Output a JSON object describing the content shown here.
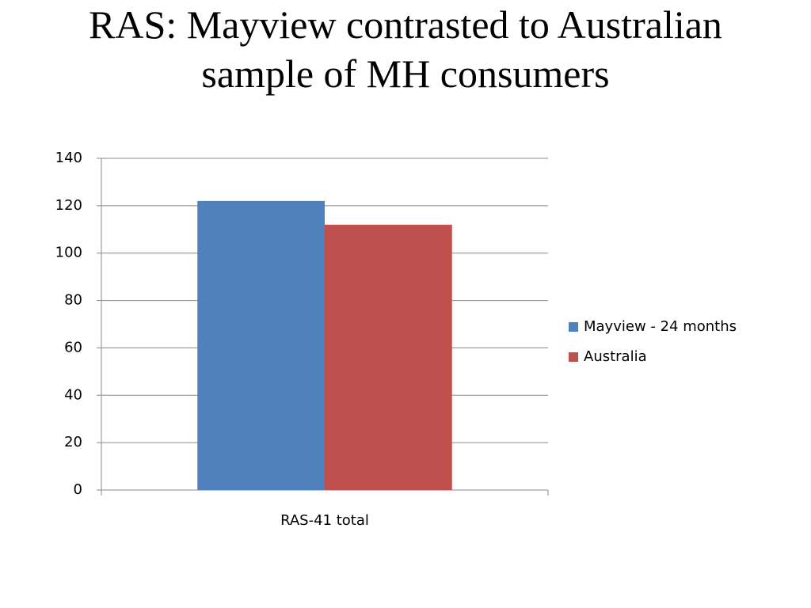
{
  "chart_data": {
    "type": "bar",
    "title": "RAS: Mayview contrasted to Australian sample of MH consumers",
    "categories": [
      "RAS-41 total"
    ],
    "series": [
      {
        "name": "Mayview - 24 months",
        "color": "#4f81bd",
        "values": [
          122
        ]
      },
      {
        "name": "Australia",
        "color": "#c0504d",
        "values": [
          112
        ]
      }
    ],
    "ylim": [
      0,
      140
    ],
    "yticks": [
      0,
      20,
      40,
      60,
      80,
      100,
      120,
      140
    ],
    "grid": true,
    "legend": "right"
  }
}
